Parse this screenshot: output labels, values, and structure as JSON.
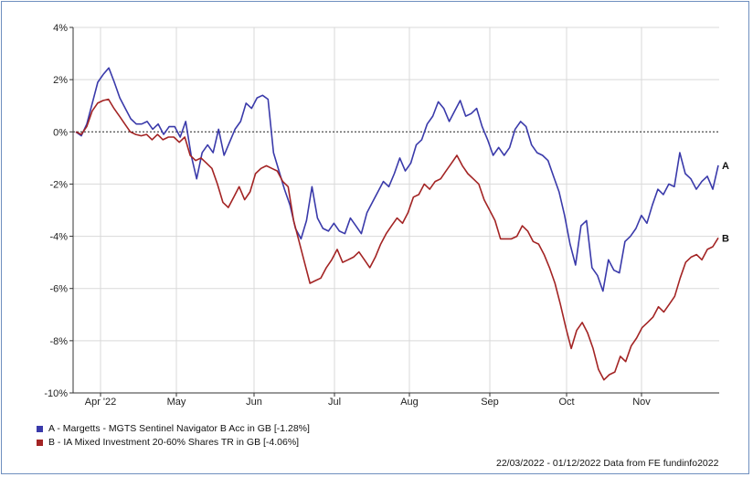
{
  "chart_data": {
    "type": "line",
    "x_ticks": [
      "Apr '22",
      "May",
      "Jun",
      "Jul",
      "Aug",
      "Sep",
      "Oct",
      "Nov"
    ],
    "y_ticks": [
      "4%",
      "2%",
      "0%",
      "-2%",
      "-4%",
      "-6%",
      "-8%",
      "-10%"
    ],
    "ylim": [
      -10,
      4
    ],
    "grid": true,
    "series": [
      {
        "name": "A - Margetts - MGTS Sentinel Navigator B Acc in GB [-1.28%]",
        "end_label": "A",
        "color": "#3a3aaa",
        "values": [
          0,
          -0.15,
          0.3,
          1.1,
          1.9,
          2.2,
          2.45,
          1.9,
          1.3,
          0.9,
          0.5,
          0.3,
          0.3,
          0.4,
          0.1,
          0.3,
          -0.1,
          0.2,
          0.2,
          -0.2,
          0.4,
          -0.9,
          -1.8,
          -0.8,
          -0.5,
          -0.8,
          0.1,
          -0.9,
          -0.4,
          0.1,
          0.4,
          1.1,
          0.9,
          1.3,
          1.4,
          1.25,
          -0.8,
          -1.5,
          -2.2,
          -2.8,
          -3.7,
          -4.1,
          -3.4,
          -2.1,
          -3.3,
          -3.7,
          -3.8,
          -3.5,
          -3.8,
          -3.9,
          -3.3,
          -3.6,
          -3.9,
          -3.1,
          -2.7,
          -2.3,
          -1.9,
          -2.1,
          -1.6,
          -1.0,
          -1.5,
          -1.2,
          -0.5,
          -0.3,
          0.3,
          0.6,
          1.15,
          0.9,
          0.4,
          0.8,
          1.2,
          0.6,
          0.7,
          0.9,
          0.2,
          -0.3,
          -0.9,
          -0.6,
          -0.9,
          -0.6,
          0.1,
          0.4,
          0.2,
          -0.5,
          -0.8,
          -0.9,
          -1.1,
          -1.7,
          -2.3,
          -3.2,
          -4.3,
          -5.1,
          -3.6,
          -3.4,
          -5.2,
          -5.5,
          -6.1,
          -4.9,
          -5.3,
          -5.4,
          -4.2,
          -4.0,
          -3.7,
          -3.2,
          -3.5,
          -2.8,
          -2.2,
          -2.4,
          -2.0,
          -2.1,
          -0.8,
          -1.6,
          -1.8,
          -2.2,
          -1.9,
          -1.7,
          -2.2,
          -1.28
        ]
      },
      {
        "name": "B - IA Mixed Investment 20-60% Shares TR in GB [-4.06%]",
        "end_label": "B",
        "color": "#a32424",
        "values": [
          0,
          -0.1,
          0.2,
          0.8,
          1.1,
          1.2,
          1.25,
          0.9,
          0.6,
          0.3,
          0.0,
          -0.1,
          -0.15,
          -0.1,
          -0.3,
          -0.1,
          -0.3,
          -0.2,
          -0.2,
          -0.4,
          -0.2,
          -0.9,
          -1.1,
          -1.0,
          -1.2,
          -1.4,
          -2.0,
          -2.7,
          -2.9,
          -2.5,
          -2.1,
          -2.6,
          -2.3,
          -1.6,
          -1.4,
          -1.3,
          -1.4,
          -1.5,
          -1.9,
          -2.1,
          -3.4,
          -4.2,
          -5.0,
          -5.8,
          -5.7,
          -5.6,
          -5.2,
          -4.9,
          -4.5,
          -5.0,
          -4.9,
          -4.8,
          -4.6,
          -4.9,
          -5.2,
          -4.8,
          -4.3,
          -3.9,
          -3.6,
          -3.3,
          -3.5,
          -3.1,
          -2.5,
          -2.4,
          -2.0,
          -2.2,
          -1.9,
          -1.8,
          -1.5,
          -1.2,
          -0.9,
          -1.3,
          -1.6,
          -1.8,
          -2.0,
          -2.6,
          -3.0,
          -3.4,
          -4.1,
          -4.1,
          -4.1,
          -4.0,
          -3.6,
          -3.8,
          -4.2,
          -4.3,
          -4.7,
          -5.2,
          -5.8,
          -6.6,
          -7.5,
          -8.3,
          -7.6,
          -7.3,
          -7.7,
          -8.3,
          -9.1,
          -9.5,
          -9.3,
          -9.2,
          -8.6,
          -8.8,
          -8.2,
          -7.9,
          -7.5,
          -7.3,
          -7.1,
          -6.7,
          -6.9,
          -6.6,
          -6.3,
          -5.6,
          -5.0,
          -4.8,
          -4.7,
          -4.9,
          -4.5,
          -4.4,
          -4.06
        ]
      }
    ]
  },
  "legend": {
    "a": "A - Margetts - MGTS Sentinel Navigator B Acc in GB [-1.28%]",
    "b": "B - IA Mixed Investment 20-60% Shares TR in GB [-4.06%]"
  },
  "footer": "22/03/2022 - 01/12/2022 Data from FE fundinfo2022",
  "colors": {
    "series_a": "#3a3aaa",
    "series_b": "#a32424",
    "grid": "#d9d9d9",
    "frame": "#6f8fbf"
  }
}
